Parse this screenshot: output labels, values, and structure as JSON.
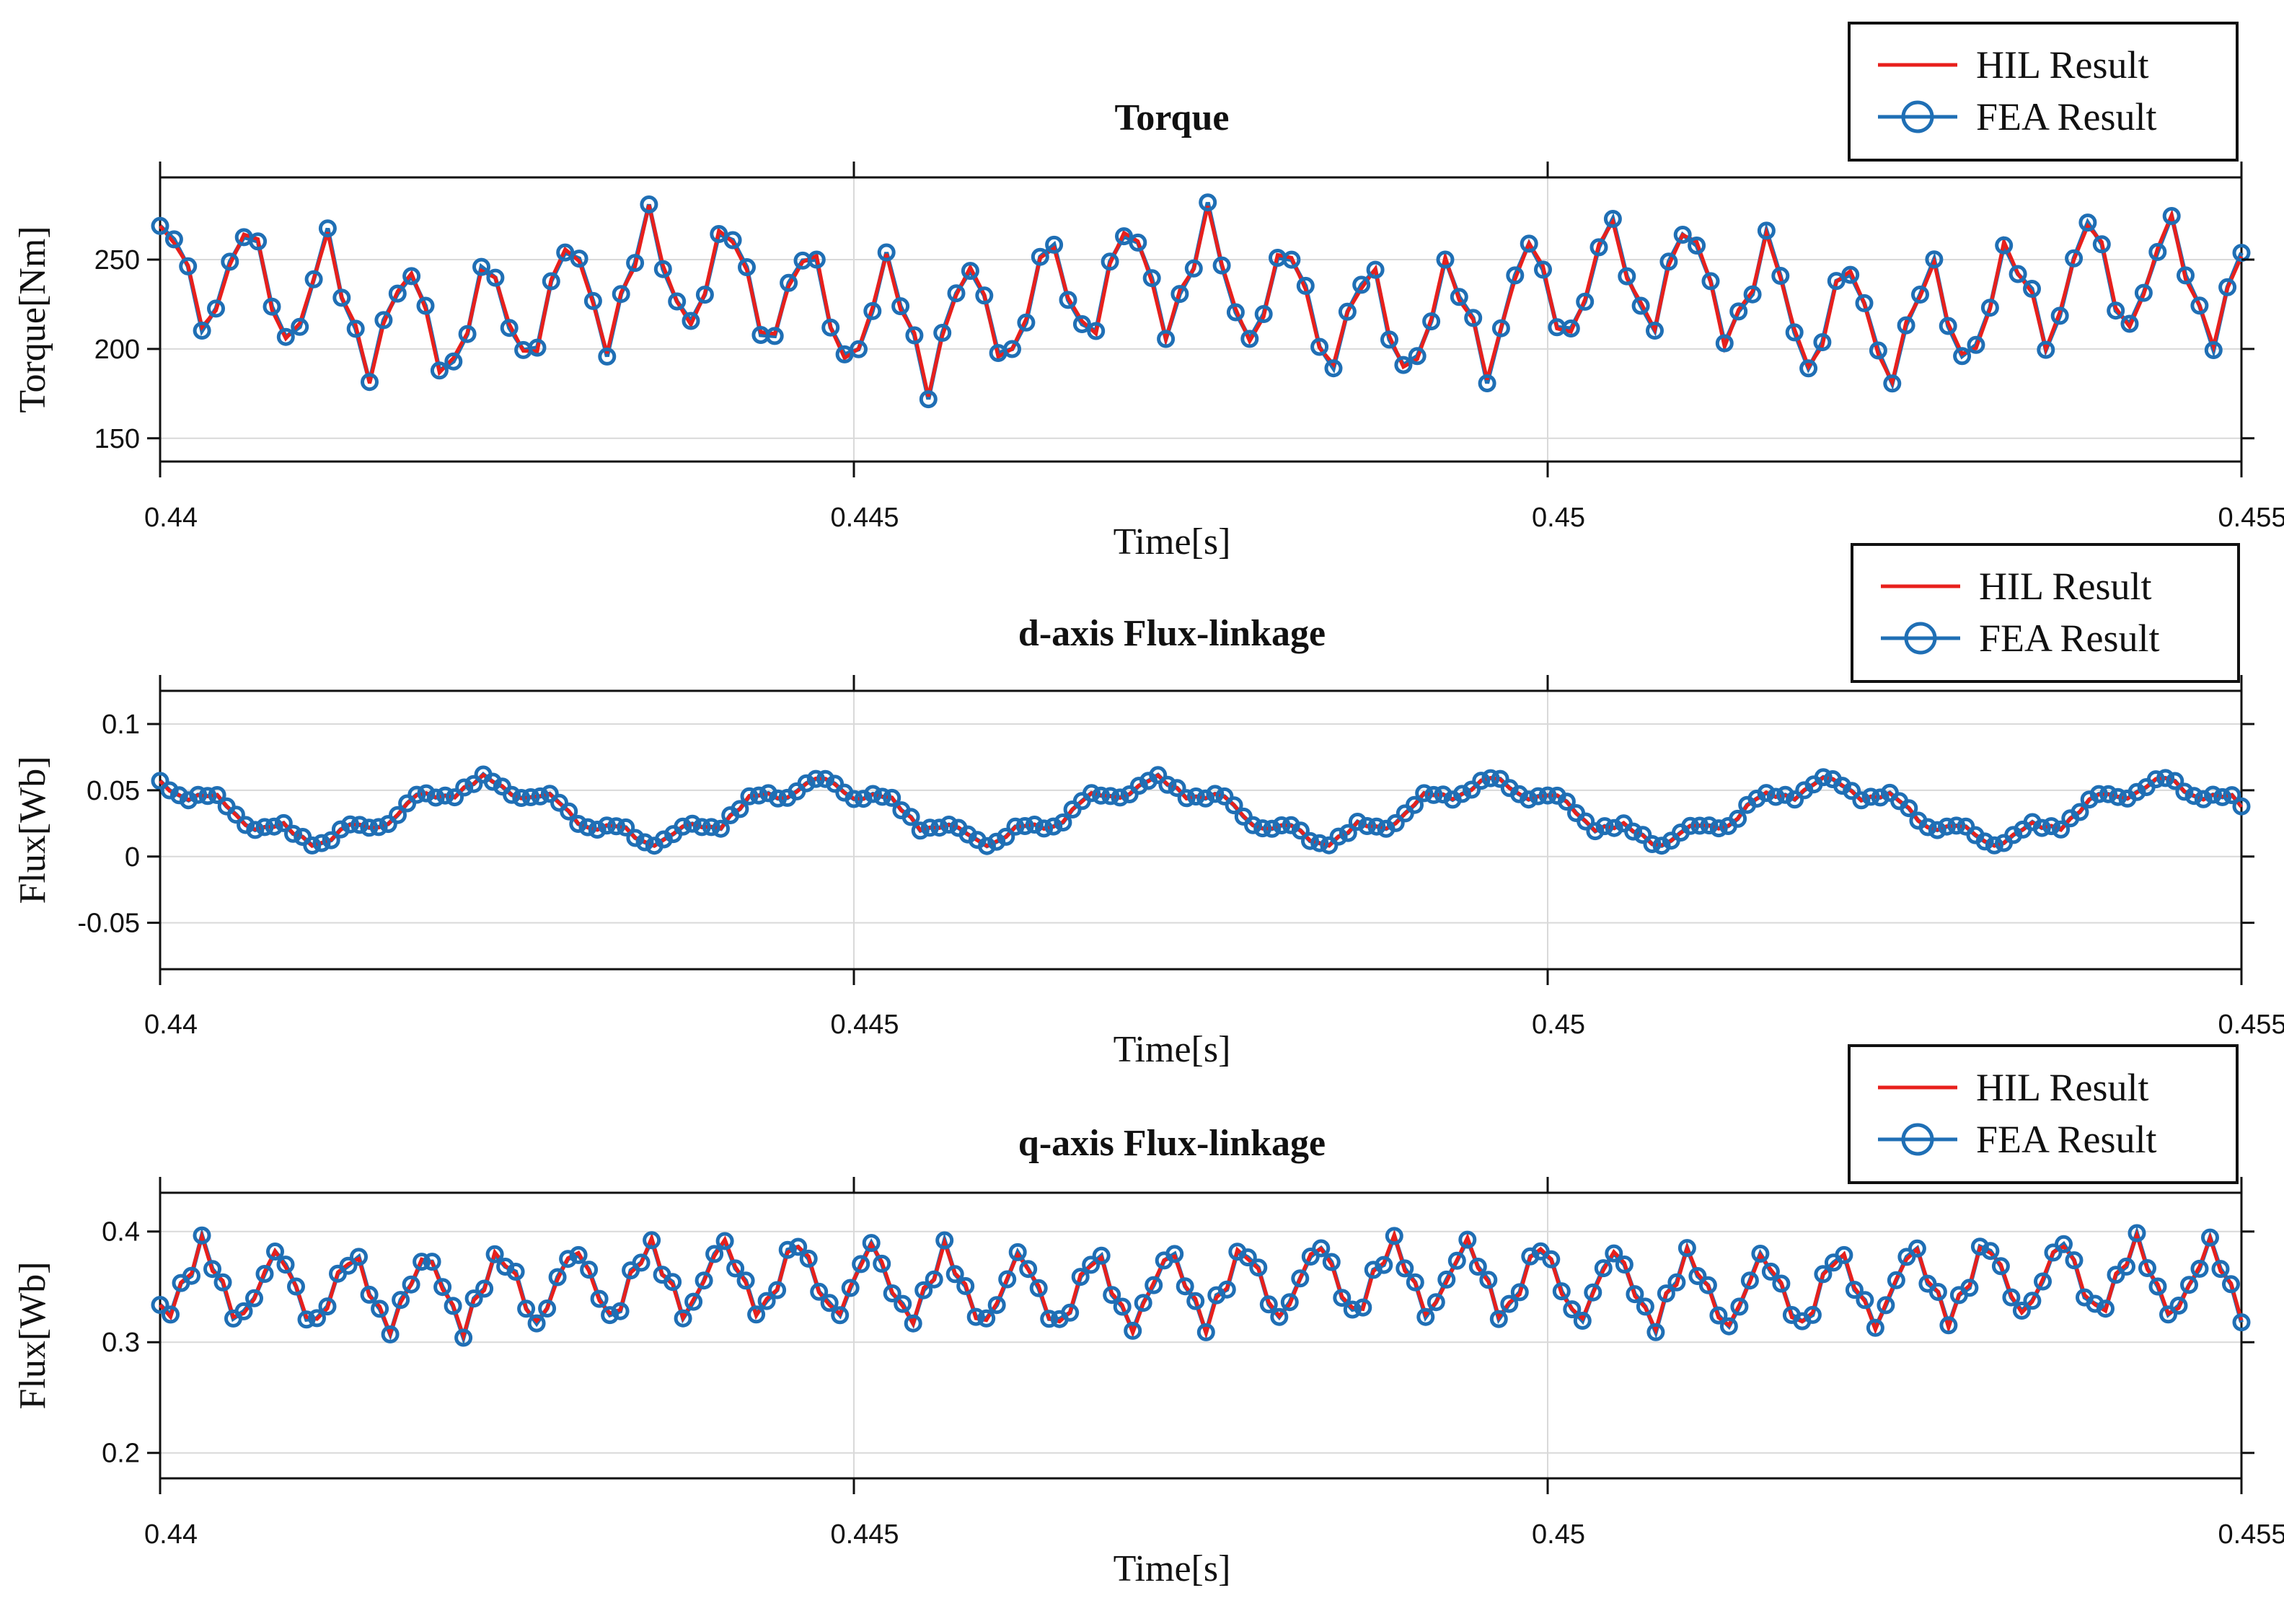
{
  "colors": {
    "hil": "#e8201c",
    "fea": "#1f6fb5",
    "grid": "#d9d9d9",
    "axis": "#111111"
  },
  "chart_data": [
    {
      "id": "torque",
      "type": "line",
      "title": "Torque",
      "xlabel": "Time[s]",
      "ylabel": "Torque[Nm]",
      "xlim": [
        0.44,
        0.455
      ],
      "ylim": [
        137,
        296
      ],
      "xticks": [
        0.44,
        0.445,
        0.45,
        0.455
      ],
      "xtick_labels": [
        "0.44",
        "0.445",
        "0.45",
        "0.455"
      ],
      "yticks": [
        150,
        200,
        250
      ],
      "ytick_labels": [
        "150",
        "200",
        "250"
      ],
      "grid": true,
      "legend": {
        "position": "top-right",
        "entries": [
          "HIL Result",
          "FEA Result"
        ]
      },
      "signal": {
        "t_start": 0.44,
        "t_end": 0.455,
        "samples": 150,
        "mean": 228,
        "slow_amp": 14,
        "slow_periods": 4.3,
        "fast_amp": 36,
        "fast_periods": 26,
        "clip": [
          172,
          283
        ]
      },
      "series": [
        {
          "name": "HIL Result",
          "style": "line"
        },
        {
          "name": "FEA Result",
          "style": "line-circle"
        }
      ]
    },
    {
      "id": "d-axis",
      "type": "line",
      "title": "d-axis Flux-linkage",
      "xlabel": "Time[s]",
      "ylabel": "Flux[Wb]",
      "xlim": [
        0.44,
        0.455
      ],
      "ylim": [
        -0.085,
        0.125
      ],
      "xticks": [
        0.44,
        0.445,
        0.45,
        0.455
      ],
      "xtick_labels": [
        "0.44",
        "0.445",
        "0.45",
        "0.455"
      ],
      "yticks": [
        -0.05,
        0,
        0.05,
        0.1
      ],
      "ytick_labels": [
        "-0.05",
        "0",
        "0.05",
        "0.1"
      ],
      "grid": true,
      "legend": {
        "position": "top-right",
        "entries": [
          "HIL Result",
          "FEA Result"
        ]
      },
      "signal": {
        "t_start": 0.44,
        "t_end": 0.455,
        "samples": 220,
        "mean": 0.034,
        "slow_amp": 0.02,
        "slow_periods": 6.2,
        "fast_amp": 0.007,
        "fast_periods": 31,
        "clip": [
          0.008,
          0.067
        ]
      },
      "series": [
        {
          "name": "HIL Result",
          "style": "line"
        },
        {
          "name": "FEA Result",
          "style": "line-circle"
        }
      ]
    },
    {
      "id": "q-axis",
      "type": "line",
      "title": "q-axis Flux-linkage",
      "xlabel": "Time[s]",
      "ylabel": "Flux[Wb]",
      "xlim": [
        0.44,
        0.455
      ],
      "ylim": [
        0.177,
        0.435
      ],
      "xticks": [
        0.44,
        0.445,
        0.45,
        0.455
      ],
      "xtick_labels": [
        "0.44",
        "0.445",
        "0.45",
        "0.455"
      ],
      "yticks": [
        0.2,
        0.3,
        0.4
      ],
      "ytick_labels": [
        "0.2",
        "0.3",
        "0.4"
      ],
      "grid": true,
      "legend": {
        "position": "top-right",
        "entries": [
          "HIL Result",
          "FEA Result"
        ]
      },
      "signal": {
        "t_start": 0.44,
        "t_end": 0.455,
        "samples": 200,
        "mean": 0.352,
        "slow_amp": 0.006,
        "slow_periods": 3.1,
        "fast_amp": 0.037,
        "fast_periods": 28,
        "clip": [
          0.3,
          0.4
        ]
      },
      "series": [
        {
          "name": "HIL Result",
          "style": "line"
        },
        {
          "name": "FEA Result",
          "style": "line-circle"
        }
      ]
    }
  ]
}
